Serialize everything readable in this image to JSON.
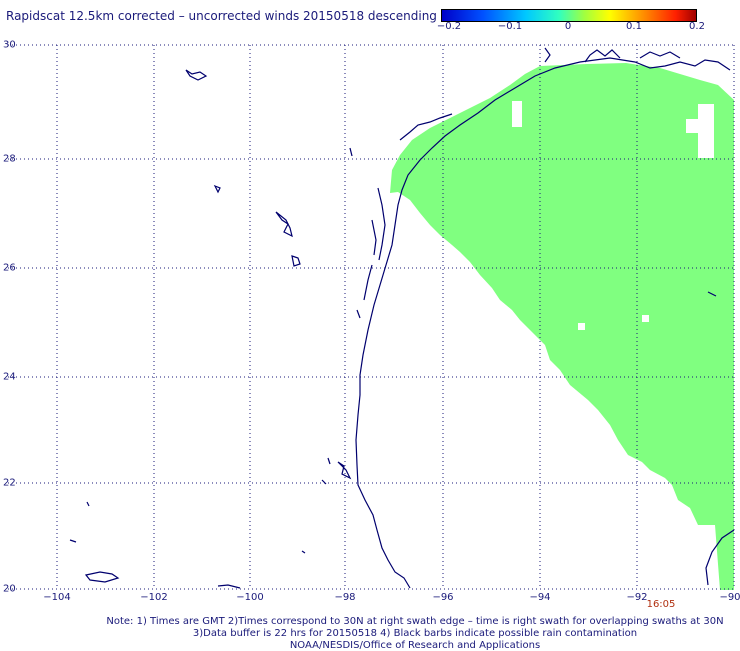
{
  "title": "Rapidscat 12.5km corrected – uncorrected winds 20150518 descending",
  "colorbar": {
    "ticks": [
      "−0.2",
      "−0.1",
      "0",
      "0.1",
      "0.2"
    ],
    "range": [
      -0.2,
      0.2
    ]
  },
  "map": {
    "lon_range": [
      -105,
      -90
    ],
    "lat_range": [
      20,
      30
    ],
    "y_ticks": [
      "30",
      "28",
      "26",
      "24",
      "22",
      "20"
    ],
    "x_ticks": [
      "−104",
      "−102",
      "−100",
      "−98",
      "−96",
      "−94",
      "−92",
      "−90"
    ],
    "grid": "dotted",
    "swath_color": "#80ff80",
    "coast_color": "#00006e"
  },
  "time_label": "16:05",
  "notes": [
    "Note: 1) Times are GMT 2)Times correspond to 30N at right swath edge – time is right swath for overlapping swaths at 30N",
    "3)Data buffer is 22 hrs for 20150518 4) Black barbs indicate possible rain contamination",
    "NOAA/NESDIS/Office of Research and Applications"
  ]
}
